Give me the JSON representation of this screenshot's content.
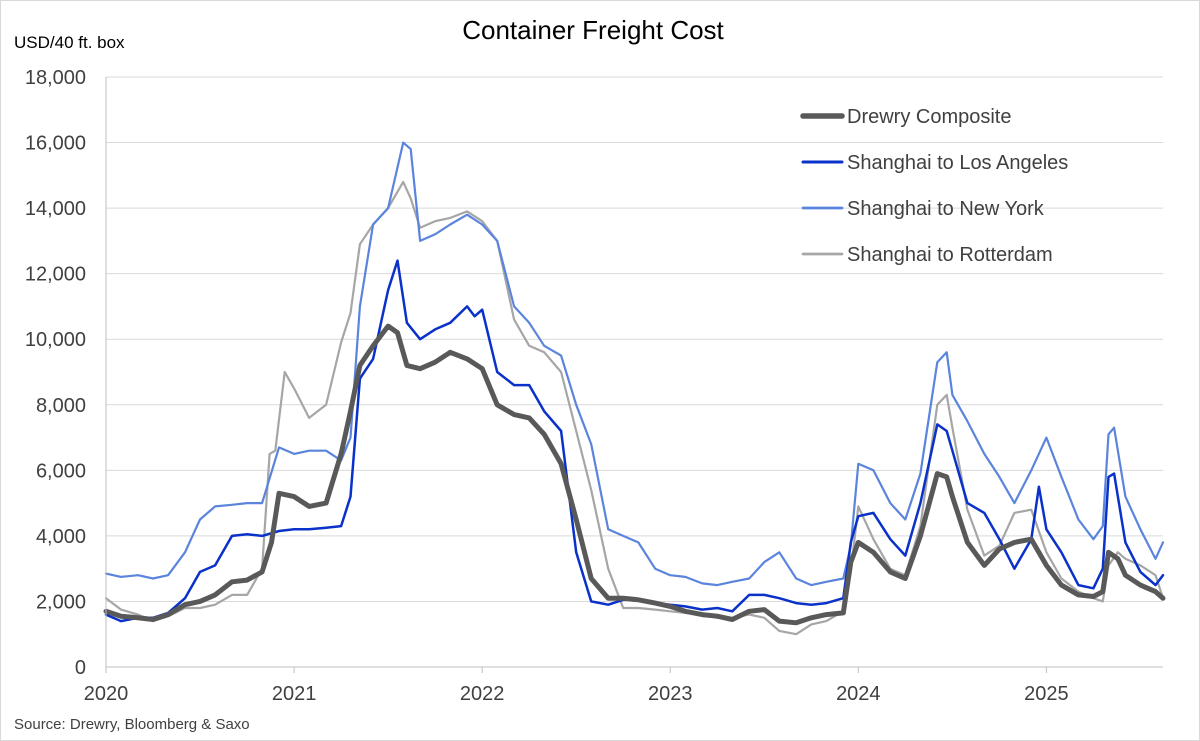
{
  "chart_data": {
    "type": "line",
    "title": "Container Freight Cost",
    "ylabel": "USD/40 ft. box",
    "xlabel": "",
    "source": "Source: Drewry, Bloomberg & Saxo",
    "ylim": [
      0,
      18000
    ],
    "xlim": [
      2020.0,
      2025.62
    ],
    "y_ticks": [
      0,
      2000,
      4000,
      6000,
      8000,
      10000,
      12000,
      14000,
      16000,
      18000
    ],
    "y_tick_labels": [
      "0",
      "2,000",
      "4,000",
      "6,000",
      "8,000",
      "10,000",
      "12,000",
      "14,000",
      "16,000",
      "18,000"
    ],
    "x_ticks": [
      2020,
      2021,
      2022,
      2023,
      2024,
      2025
    ],
    "x_tick_labels": [
      "2020",
      "2021",
      "2022",
      "2023",
      "2024",
      "2025"
    ],
    "grid": "horizontal",
    "legend_position": "top-right",
    "series": [
      {
        "name": "Drewry Composite",
        "color": "#595959",
        "x": [
          2020.0,
          2020.08,
          2020.17,
          2020.25,
          2020.33,
          2020.42,
          2020.5,
          2020.58,
          2020.67,
          2020.75,
          2020.83,
          2020.88,
          2020.92,
          2021.0,
          2021.08,
          2021.17,
          2021.25,
          2021.3,
          2021.35,
          2021.42,
          2021.5,
          2021.55,
          2021.6,
          2021.67,
          2021.75,
          2021.83,
          2021.92,
          2022.0,
          2022.08,
          2022.17,
          2022.25,
          2022.33,
          2022.42,
          2022.5,
          2022.58,
          2022.67,
          2022.75,
          2022.83,
          2022.92,
          2023.0,
          2023.08,
          2023.17,
          2023.25,
          2023.33,
          2023.42,
          2023.5,
          2023.58,
          2023.67,
          2023.75,
          2023.83,
          2023.92,
          2023.96,
          2024.0,
          2024.08,
          2024.17,
          2024.25,
          2024.33,
          2024.42,
          2024.47,
          2024.5,
          2024.58,
          2024.67,
          2024.75,
          2024.83,
          2024.92,
          2025.0,
          2025.08,
          2025.17,
          2025.25,
          2025.3,
          2025.33,
          2025.38,
          2025.42,
          2025.5,
          2025.58,
          2025.62
        ],
        "values": [
          1700,
          1550,
          1500,
          1450,
          1600,
          1900,
          2000,
          2200,
          2600,
          2650,
          2900,
          3800,
          5300,
          5200,
          4900,
          5000,
          6500,
          7800,
          9200,
          9800,
          10400,
          10200,
          9200,
          9100,
          9300,
          9600,
          9400,
          9100,
          8000,
          7700,
          7600,
          7100,
          6200,
          4500,
          2700,
          2100,
          2100,
          2050,
          1950,
          1850,
          1700,
          1600,
          1550,
          1450,
          1700,
          1750,
          1400,
          1350,
          1500,
          1600,
          1650,
          3200,
          3800,
          3500,
          2900,
          2700,
          4000,
          5900,
          5800,
          5200,
          3800,
          3100,
          3600,
          3800,
          3900,
          3100,
          2500,
          2200,
          2150,
          2300,
          3500,
          3300,
          2800,
          2500,
          2300,
          2100
        ]
      },
      {
        "name": "Shanghai to Los Angeles",
        "color": "#0a31c9",
        "x": [
          2020.0,
          2020.08,
          2020.17,
          2020.25,
          2020.33,
          2020.42,
          2020.5,
          2020.58,
          2020.67,
          2020.75,
          2020.83,
          2020.92,
          2021.0,
          2021.08,
          2021.17,
          2021.25,
          2021.3,
          2021.35,
          2021.42,
          2021.5,
          2021.55,
          2021.6,
          2021.67,
          2021.75,
          2021.83,
          2021.92,
          2021.96,
          2022.0,
          2022.08,
          2022.17,
          2022.25,
          2022.33,
          2022.42,
          2022.5,
          2022.58,
          2022.67,
          2022.75,
          2022.83,
          2022.92,
          2023.0,
          2023.08,
          2023.17,
          2023.25,
          2023.33,
          2023.42,
          2023.5,
          2023.58,
          2023.67,
          2023.75,
          2023.83,
          2023.92,
          2023.96,
          2024.0,
          2024.08,
          2024.17,
          2024.25,
          2024.33,
          2024.42,
          2024.47,
          2024.5,
          2024.58,
          2024.67,
          2024.75,
          2024.83,
          2024.92,
          2024.96,
          2025.0,
          2025.08,
          2025.17,
          2025.25,
          2025.3,
          2025.33,
          2025.36,
          2025.42,
          2025.5,
          2025.58,
          2025.62
        ],
        "values": [
          1600,
          1400,
          1500,
          1500,
          1650,
          2100,
          2900,
          3100,
          4000,
          4050,
          4000,
          4150,
          4200,
          4200,
          4250,
          4300,
          5200,
          8800,
          9400,
          11500,
          12400,
          10500,
          10000,
          10300,
          10500,
          11000,
          10700,
          10900,
          9000,
          8600,
          8600,
          7800,
          7200,
          3500,
          2000,
          1900,
          2050,
          2050,
          1950,
          1900,
          1850,
          1750,
          1800,
          1700,
          2200,
          2200,
          2100,
          1950,
          1900,
          1950,
          2100,
          3800,
          4600,
          4700,
          3900,
          3400,
          5000,
          7400,
          7200,
          6600,
          5000,
          4700,
          3900,
          3000,
          3900,
          5500,
          4200,
          3500,
          2500,
          2400,
          3000,
          5800,
          5900,
          3800,
          2900,
          2500,
          2800
        ]
      },
      {
        "name": "Shanghai to New York",
        "color": "#5b84dd",
        "x": [
          2020.0,
          2020.08,
          2020.17,
          2020.25,
          2020.33,
          2020.42,
          2020.5,
          2020.58,
          2020.67,
          2020.75,
          2020.83,
          2020.92,
          2021.0,
          2021.08,
          2021.17,
          2021.25,
          2021.3,
          2021.35,
          2021.42,
          2021.5,
          2021.58,
          2021.62,
          2021.67,
          2021.75,
          2021.83,
          2021.92,
          2022.0,
          2022.08,
          2022.17,
          2022.25,
          2022.33,
          2022.42,
          2022.5,
          2022.58,
          2022.67,
          2022.75,
          2022.83,
          2022.92,
          2023.0,
          2023.08,
          2023.17,
          2023.25,
          2023.33,
          2023.42,
          2023.5,
          2023.58,
          2023.67,
          2023.75,
          2023.83,
          2023.92,
          2023.96,
          2024.0,
          2024.08,
          2024.17,
          2024.25,
          2024.33,
          2024.42,
          2024.47,
          2024.5,
          2024.58,
          2024.67,
          2024.75,
          2024.83,
          2024.92,
          2025.0,
          2025.08,
          2025.17,
          2025.25,
          2025.3,
          2025.33,
          2025.36,
          2025.42,
          2025.5,
          2025.58,
          2025.62
        ],
        "values": [
          2850,
          2750,
          2800,
          2700,
          2800,
          3500,
          4500,
          4900,
          4950,
          5000,
          5000,
          6700,
          6500,
          6600,
          6600,
          6300,
          7000,
          11000,
          13500,
          14000,
          16000,
          15800,
          13000,
          13200,
          13500,
          13800,
          13500,
          13000,
          11000,
          10500,
          9800,
          9500,
          8000,
          6800,
          4200,
          4000,
          3800,
          3000,
          2800,
          2750,
          2550,
          2500,
          2600,
          2700,
          3200,
          3500,
          2700,
          2500,
          2600,
          2700,
          3700,
          6200,
          6000,
          5000,
          4500,
          5900,
          9300,
          9600,
          8300,
          7500,
          6500,
          5800,
          5000,
          6000,
          7000,
          5800,
          4500,
          3900,
          4300,
          7100,
          7300,
          5200,
          4200,
          3300,
          3800
        ]
      },
      {
        "name": "Shanghai to Rotterdam",
        "color": "#a6a6a6",
        "x": [
          2020.0,
          2020.08,
          2020.17,
          2020.25,
          2020.33,
          2020.42,
          2020.5,
          2020.58,
          2020.67,
          2020.75,
          2020.83,
          2020.87,
          2020.9,
          2020.95,
          2021.0,
          2021.08,
          2021.17,
          2021.25,
          2021.3,
          2021.35,
          2021.42,
          2021.5,
          2021.58,
          2021.62,
          2021.67,
          2021.75,
          2021.83,
          2021.92,
          2022.0,
          2022.08,
          2022.17,
          2022.25,
          2022.33,
          2022.42,
          2022.5,
          2022.58,
          2022.67,
          2022.75,
          2022.83,
          2022.92,
          2023.0,
          2023.08,
          2023.17,
          2023.25,
          2023.33,
          2023.42,
          2023.5,
          2023.58,
          2023.67,
          2023.75,
          2023.83,
          2023.92,
          2023.96,
          2024.0,
          2024.08,
          2024.17,
          2024.25,
          2024.33,
          2024.42,
          2024.47,
          2024.5,
          2024.58,
          2024.67,
          2024.75,
          2024.83,
          2024.92,
          2025.0,
          2025.08,
          2025.17,
          2025.25,
          2025.3,
          2025.33,
          2025.38,
          2025.42,
          2025.5,
          2025.58,
          2025.62
        ],
        "values": [
          2100,
          1750,
          1600,
          1400,
          1550,
          1800,
          1800,
          1900,
          2200,
          2200,
          3000,
          6500,
          6600,
          9000,
          8500,
          7600,
          8000,
          9900,
          10800,
          12900,
          13500,
          14000,
          14800,
          14300,
          13400,
          13600,
          13700,
          13900,
          13600,
          13000,
          10600,
          9800,
          9600,
          9000,
          7200,
          5400,
          3000,
          1800,
          1800,
          1750,
          1700,
          1650,
          1600,
          1500,
          1500,
          1600,
          1500,
          1100,
          1000,
          1300,
          1400,
          1700,
          2900,
          4900,
          3900,
          3000,
          2800,
          4300,
          8000,
          8300,
          7300,
          4800,
          3400,
          3700,
          4700,
          4800,
          3500,
          2700,
          2300,
          2100,
          2000,
          3100,
          3500,
          3300,
          3100,
          2800,
          2100
        ]
      }
    ]
  }
}
